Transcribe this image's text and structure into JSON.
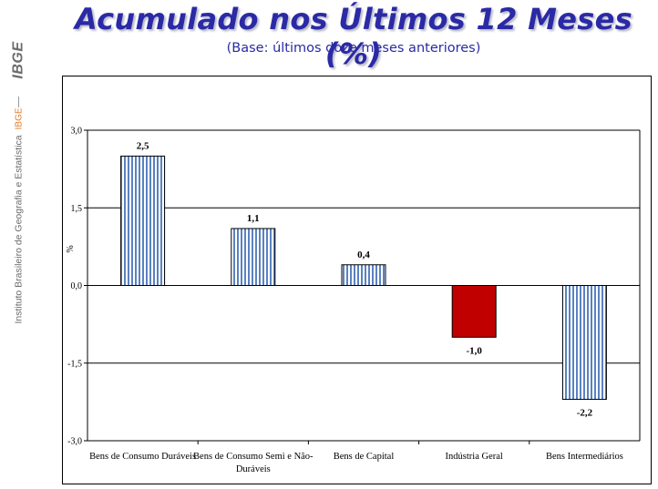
{
  "sidebar": {
    "logo": "IBGE",
    "institute": "Instituto Brasileiro de Geografia e Estatística",
    "institute_abbr": "IBGE"
  },
  "header": {
    "title": "Acumulado nos Últimos 12 Meses (%)",
    "subtitle": "(Base: últimos doze meses anteriores)"
  },
  "colors": {
    "title": "#2a2aa6",
    "bar_stripe": "#5a82c0",
    "bar_negative": "#c00000"
  },
  "chart_data": {
    "type": "bar",
    "title": "",
    "xlabel": "",
    "ylabel": "%",
    "ylim": [
      -3.0,
      3.0
    ],
    "yticks": [
      "3,0",
      "1,5",
      "0,0",
      "-1,5",
      "-3,0"
    ],
    "ytick_values": [
      3.0,
      1.5,
      0.0,
      -1.5,
      -3.0
    ],
    "grid": true,
    "categories": [
      [
        "Bens de Consumo Duráveis"
      ],
      [
        "Bens de Consumo Semi e Não-",
        "Duráveis"
      ],
      [
        "Bens de Capital"
      ],
      [
        "Indústria Geral"
      ],
      [
        "Bens Intermediários"
      ]
    ],
    "values": [
      2.5,
      1.1,
      0.4,
      -1.0,
      -2.2
    ],
    "labels": [
      "2,5",
      "1,1",
      "0,4",
      "-1,0",
      "-2,2"
    ],
    "highlight_index": 3
  }
}
